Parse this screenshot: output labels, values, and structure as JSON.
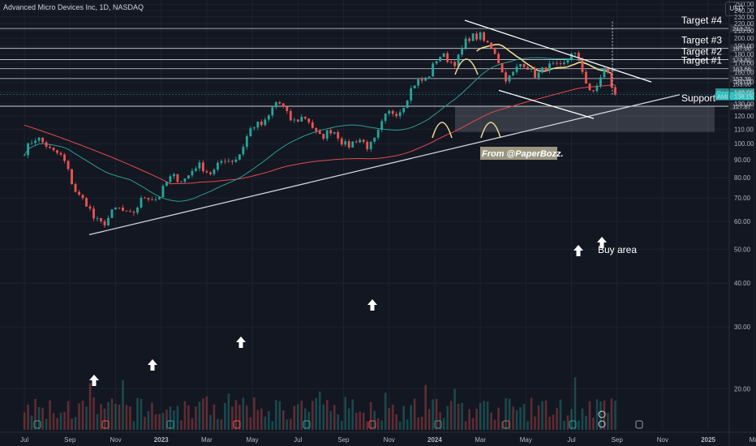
{
  "header": {
    "symbol_title": "Advanced Micro Devices Inc, 1D, NASDAQ",
    "currency_button": "USD"
  },
  "colors": {
    "background": "#131722",
    "up": "#26a69a",
    "down": "#ef5350",
    "ma_long": "#e04b4b",
    "ma_short": "#2a9d8f",
    "ma_yellow": "#f0d78c",
    "line": "#ffffff",
    "cyan": "#2ec4c4"
  },
  "chart_data": {
    "type": "candlestick",
    "x_ticks": [
      "Jul",
      "Sep",
      "Nov",
      "2023",
      "Mar",
      "May",
      "Jul",
      "Sep",
      "Nov",
      "2024",
      "Mar",
      "May",
      "Jul",
      "Sep",
      "Nov",
      "2025",
      "Ma"
    ],
    "y_ticks": [
      250,
      240,
      230,
      220,
      210,
      200,
      190,
      180,
      170,
      160,
      150,
      140,
      130,
      120,
      110,
      100,
      90,
      80,
      70,
      60,
      50,
      40,
      30,
      20
    ],
    "levels": [
      {
        "value": 213.21,
        "tag": "213.21",
        "label": "Target #4"
      },
      {
        "value": 187.0,
        "tag": "187.00",
        "label": "Target #3"
      },
      {
        "value": 173.82,
        "tag": "173.82",
        "label": "Target #2"
      },
      {
        "value": 163.66,
        "tag": "163.66",
        "label": "Target #1"
      },
      {
        "value": 153.39,
        "tag": "153.39",
        "label": ""
      },
      {
        "value": 127.92,
        "tag": "127.92",
        "label": "Support"
      },
      {
        "value": 127.87,
        "tag": "127.87",
        "label": ""
      }
    ],
    "price_tags": [
      {
        "name": "Post",
        "value": "138.56"
      },
      {
        "name": "AMD",
        "value": "138.15"
      }
    ],
    "price_axis_extra": [
      "153.00"
    ],
    "annotations": {
      "watermark": "From @PaperBozz.",
      "buy_area": "Buy area"
    },
    "key_points": [
      {
        "date": "2022-07",
        "close": 98
      },
      {
        "date": "2022-08",
        "close": 102
      },
      {
        "date": "2022-10",
        "close": 60
      },
      {
        "date": "2022-12",
        "close": 66
      },
      {
        "date": "2023-02",
        "close": 82
      },
      {
        "date": "2023-04",
        "close": 88
      },
      {
        "date": "2023-06",
        "close": 128
      },
      {
        "date": "2023-08",
        "close": 108
      },
      {
        "date": "2023-10",
        "close": 98
      },
      {
        "date": "2023-12",
        "close": 140
      },
      {
        "date": "2024-01",
        "close": 170
      },
      {
        "date": "2024-02",
        "close": 178
      },
      {
        "date": "2024-03",
        "close": 210
      },
      {
        "date": "2024-04",
        "close": 158
      },
      {
        "date": "2024-05",
        "close": 165
      },
      {
        "date": "2024-06",
        "close": 160
      },
      {
        "date": "2024-07",
        "close": 180
      },
      {
        "date": "2024-08",
        "close": 140
      },
      {
        "date": "2024-08",
        "close": 160
      },
      {
        "date": "2024-09",
        "close": 138
      }
    ]
  }
}
